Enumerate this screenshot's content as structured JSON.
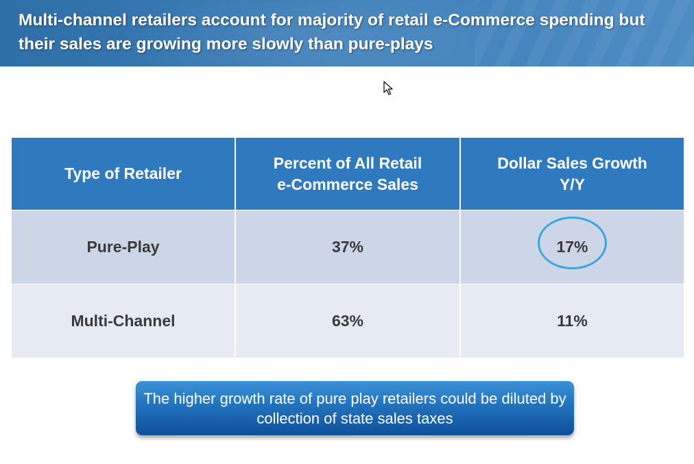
{
  "slide": {
    "title": "Multi-channel retailers account for majority of retail e-Commerce spending but their sales are growing more slowly than pure-plays"
  },
  "table": {
    "headers": [
      "Type of Retailer",
      "Percent of All Retail\ne-Commerce Sales",
      "Dollar Sales Growth\nY/Y"
    ],
    "rows": [
      [
        "Pure-Play",
        "37%",
        "17%"
      ],
      [
        "Multi-Channel",
        "63%",
        "11%"
      ]
    ]
  },
  "callout": {
    "text": "The higher growth rate of pure play retailers could be diluted by collection of state sales taxes"
  },
  "colors": {
    "header_bg": "#2f79bf",
    "row1_bg": "#cdd6e6",
    "row2_bg": "#e6ebf3",
    "highlight_circle": "#3aa6de"
  }
}
